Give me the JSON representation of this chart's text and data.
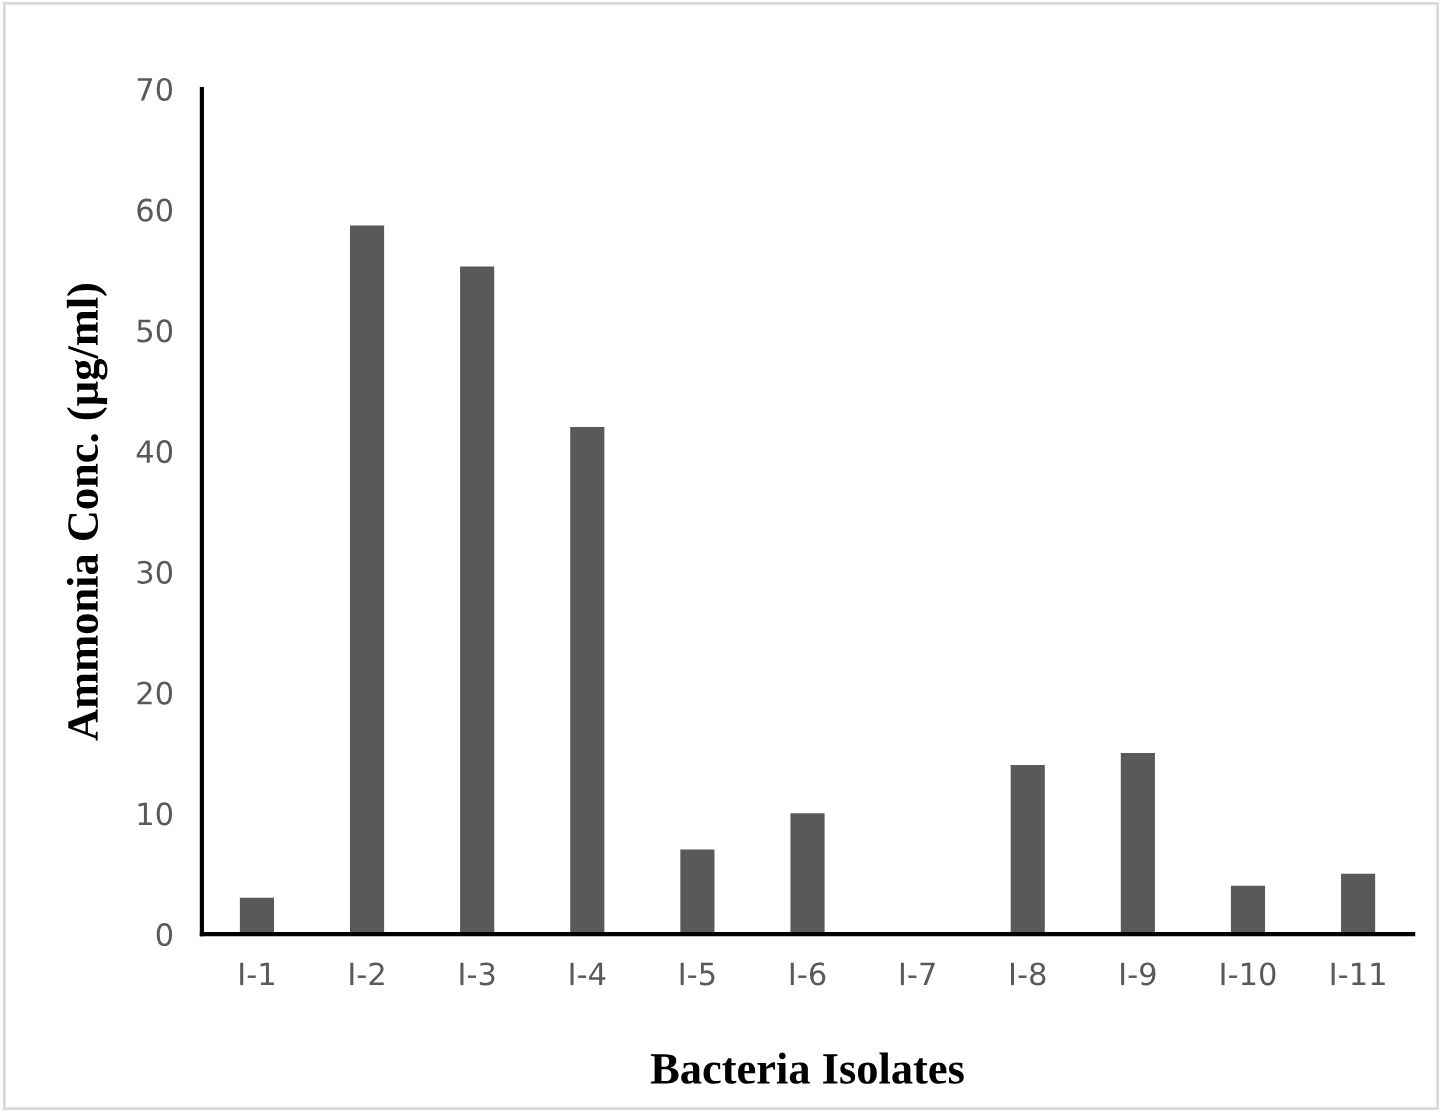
{
  "chart_data": {
    "type": "bar",
    "xlabel": "Bacteria Isolates",
    "ylabel": "Ammonia Conc. (µg/ml)",
    "categories": [
      "I-1",
      "I-2",
      "I-3",
      "I-4",
      "I-5",
      "I-6",
      "I-7",
      "I-8",
      "I-9",
      "I-10",
      "I-11"
    ],
    "values": [
      3,
      58.7,
      55.3,
      42,
      7,
      10,
      0,
      14,
      15,
      4,
      5
    ],
    "color": "#595959",
    "ylim": [
      0,
      70
    ],
    "yticks": [
      0,
      10,
      20,
      30,
      40,
      50,
      60,
      70
    ],
    "grid": false,
    "legend": false
  }
}
